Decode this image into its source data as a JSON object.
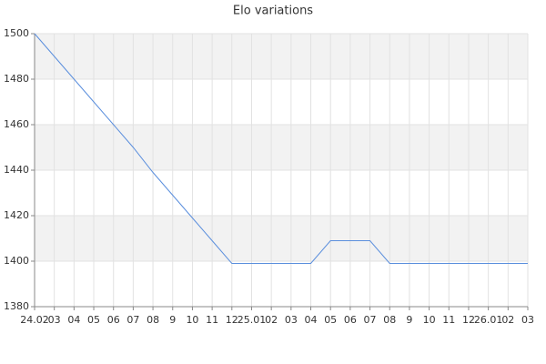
{
  "chart_data": {
    "type": "line",
    "title": "Elo variations",
    "categories": [
      "24.02",
      "03",
      "04",
      "05",
      "06",
      "07",
      "08",
      "9",
      "10",
      "11",
      "12",
      "25.01",
      "02",
      "03",
      "04",
      "05",
      "06",
      "07",
      "08",
      "9",
      "10",
      "11",
      "12",
      "26.01",
      "02",
      "03"
    ],
    "values": [
      1500,
      1490,
      1480,
      1470,
      1460,
      1450,
      1439,
      1429,
      1419,
      1409,
      1399,
      1399,
      1399,
      1399,
      1399,
      1409,
      1409,
      1409,
      1399,
      1399,
      1399,
      1399,
      1399,
      1399,
      1399,
      1399
    ],
    "color": "#5b8fdd",
    "ylim": [
      1380,
      1500
    ],
    "yticks": [
      1380,
      1400,
      1420,
      1440,
      1460,
      1480,
      1500
    ],
    "grid": true
  }
}
